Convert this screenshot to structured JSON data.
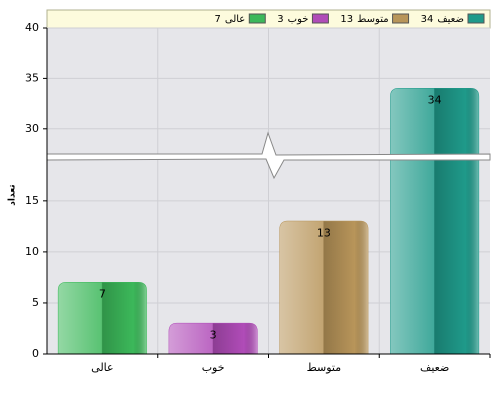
{
  "chart_data": {
    "type": "bar",
    "y_label": "تعداد",
    "categories": [
      "عالی",
      "خوب",
      "متوسط",
      "ضعیف"
    ],
    "values": [
      7,
      3,
      13,
      34
    ],
    "colors": [
      "#3cb85a",
      "#b04cb8",
      "#b8955a",
      "#1f9a8a"
    ],
    "ylim": [
      0,
      40
    ],
    "yticks": [
      0,
      5,
      10,
      15,
      30,
      35,
      40
    ],
    "y_break": [
      19,
      27.5
    ],
    "grid": true
  }
}
